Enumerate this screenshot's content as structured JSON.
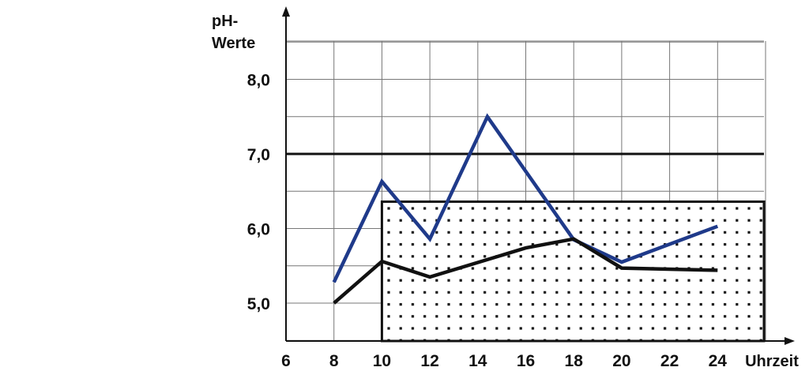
{
  "chart_data": {
    "type": "line",
    "title": "",
    "ylabel_lines": [
      "pH-",
      "Werte"
    ],
    "xlabel": "Uhrzeit",
    "x_ticks": [
      "6",
      "8",
      "10",
      "12",
      "14",
      "16",
      "18",
      "20",
      "22",
      "24"
    ],
    "y_ticks": [
      "5,0",
      "6,0",
      "7,0",
      "8,0"
    ],
    "xlim": [
      6,
      26
    ],
    "ylim": [
      4.5,
      8.8
    ],
    "grid": true,
    "reference_line": {
      "y": 7.0,
      "color": "#111111"
    },
    "shaded_region": {
      "x": [
        10,
        26
      ],
      "y": [
        4.5,
        6.36
      ],
      "pattern": "dots"
    },
    "series": [
      {
        "color": "#1f3a8a",
        "x": [
          8,
          10,
          12,
          14.4,
          18,
          20,
          24
        ],
        "y": [
          5.28,
          6.63,
          5.86,
          7.5,
          5.85,
          5.55,
          6.03
        ]
      },
      {
        "color": "#111111",
        "x": [
          8,
          10,
          12,
          16,
          18,
          20,
          24
        ],
        "y": [
          5.0,
          5.56,
          5.35,
          5.74,
          5.86,
          5.47,
          5.44
        ]
      }
    ]
  }
}
